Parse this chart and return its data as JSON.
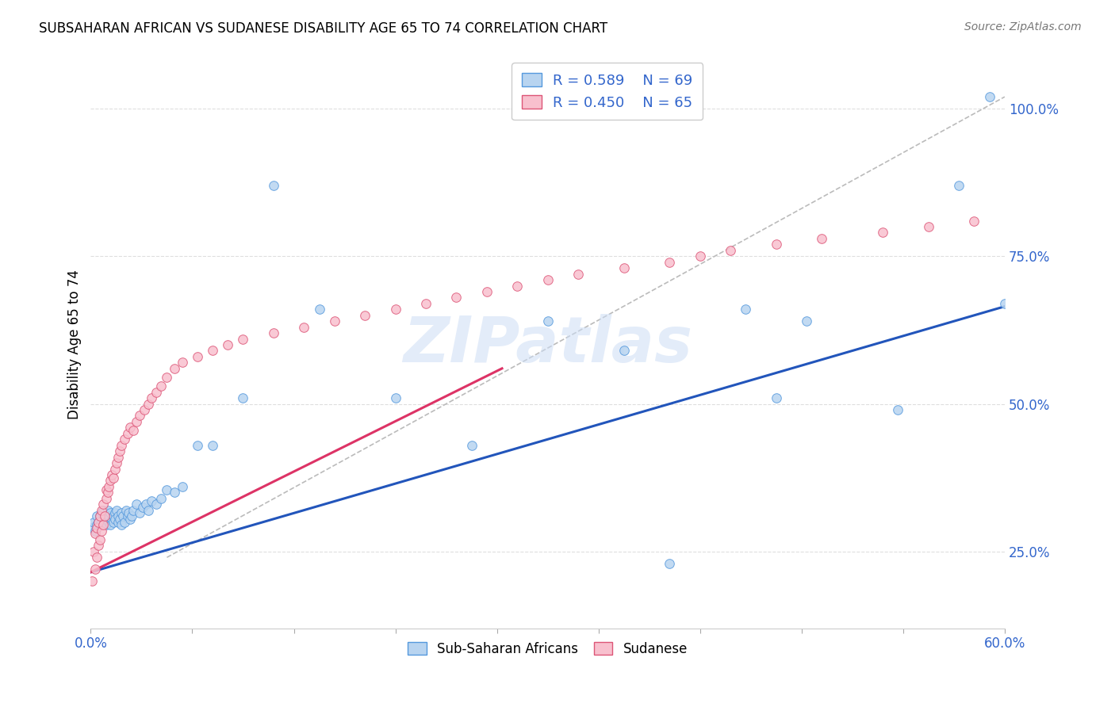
{
  "title": "SUBSAHARAN AFRICAN VS SUDANESE DISABILITY AGE 65 TO 74 CORRELATION CHART",
  "source": "Source: ZipAtlas.com",
  "ylabel": "Disability Age 65 to 74",
  "yticks_labels": [
    "25.0%",
    "50.0%",
    "75.0%",
    "100.0%"
  ],
  "ytick_vals": [
    0.25,
    0.5,
    0.75,
    1.0
  ],
  "legend_blue_r": "R = 0.589",
  "legend_blue_n": "N = 69",
  "legend_pink_r": "R = 0.450",
  "legend_pink_n": "N = 65",
  "legend_label_blue": "Sub-Saharan Africans",
  "legend_label_pink": "Sudanese",
  "color_blue_fill": "#b8d4f0",
  "color_blue_edge": "#5599dd",
  "color_pink_fill": "#f8c0ce",
  "color_pink_edge": "#dd5577",
  "color_blue_line": "#2255bb",
  "color_pink_line": "#dd3366",
  "color_diag": "#bbbbbb",
  "xlim": [
    0.0,
    0.6
  ],
  "ylim": [
    0.12,
    1.08
  ],
  "blue_scatter_x": [
    0.001,
    0.002,
    0.003,
    0.004,
    0.004,
    0.005,
    0.006,
    0.006,
    0.007,
    0.007,
    0.008,
    0.008,
    0.009,
    0.009,
    0.01,
    0.01,
    0.011,
    0.011,
    0.012,
    0.012,
    0.013,
    0.013,
    0.014,
    0.015,
    0.015,
    0.016,
    0.016,
    0.017,
    0.018,
    0.018,
    0.019,
    0.02,
    0.02,
    0.021,
    0.022,
    0.023,
    0.024,
    0.025,
    0.026,
    0.027,
    0.028,
    0.03,
    0.032,
    0.034,
    0.036,
    0.038,
    0.04,
    0.043,
    0.046,
    0.05,
    0.055,
    0.06,
    0.07,
    0.08,
    0.1,
    0.12,
    0.15,
    0.2,
    0.25,
    0.3,
    0.35,
    0.38,
    0.43,
    0.45,
    0.47,
    0.53,
    0.57,
    0.59,
    0.6
  ],
  "blue_scatter_y": [
    0.29,
    0.3,
    0.285,
    0.295,
    0.31,
    0.3,
    0.295,
    0.31,
    0.3,
    0.315,
    0.295,
    0.32,
    0.3,
    0.305,
    0.31,
    0.295,
    0.305,
    0.32,
    0.3,
    0.31,
    0.295,
    0.315,
    0.305,
    0.31,
    0.3,
    0.315,
    0.305,
    0.32,
    0.3,
    0.31,
    0.305,
    0.295,
    0.315,
    0.31,
    0.3,
    0.32,
    0.31,
    0.315,
    0.305,
    0.31,
    0.32,
    0.33,
    0.315,
    0.325,
    0.33,
    0.32,
    0.335,
    0.33,
    0.34,
    0.355,
    0.35,
    0.36,
    0.43,
    0.43,
    0.51,
    0.87,
    0.66,
    0.51,
    0.43,
    0.64,
    0.59,
    0.23,
    0.66,
    0.51,
    0.64,
    0.49,
    0.87,
    1.02,
    0.67
  ],
  "pink_scatter_x": [
    0.001,
    0.002,
    0.003,
    0.003,
    0.004,
    0.004,
    0.005,
    0.005,
    0.006,
    0.006,
    0.007,
    0.007,
    0.008,
    0.008,
    0.009,
    0.01,
    0.01,
    0.011,
    0.012,
    0.013,
    0.014,
    0.015,
    0.016,
    0.017,
    0.018,
    0.019,
    0.02,
    0.022,
    0.024,
    0.026,
    0.028,
    0.03,
    0.032,
    0.035,
    0.038,
    0.04,
    0.043,
    0.046,
    0.05,
    0.055,
    0.06,
    0.07,
    0.08,
    0.09,
    0.1,
    0.12,
    0.14,
    0.16,
    0.18,
    0.2,
    0.22,
    0.24,
    0.26,
    0.28,
    0.3,
    0.32,
    0.35,
    0.38,
    0.4,
    0.42,
    0.45,
    0.48,
    0.52,
    0.55,
    0.58
  ],
  "pink_scatter_y": [
    0.2,
    0.25,
    0.22,
    0.28,
    0.24,
    0.29,
    0.26,
    0.3,
    0.27,
    0.31,
    0.285,
    0.32,
    0.295,
    0.33,
    0.31,
    0.34,
    0.355,
    0.35,
    0.36,
    0.37,
    0.38,
    0.375,
    0.39,
    0.4,
    0.41,
    0.42,
    0.43,
    0.44,
    0.45,
    0.46,
    0.455,
    0.47,
    0.48,
    0.49,
    0.5,
    0.51,
    0.52,
    0.53,
    0.545,
    0.56,
    0.57,
    0.58,
    0.59,
    0.6,
    0.61,
    0.62,
    0.63,
    0.64,
    0.65,
    0.66,
    0.67,
    0.68,
    0.69,
    0.7,
    0.71,
    0.72,
    0.73,
    0.74,
    0.75,
    0.76,
    0.77,
    0.78,
    0.79,
    0.8,
    0.81
  ],
  "blue_line_x": [
    0.0,
    0.6
  ],
  "blue_line_y": [
    0.215,
    0.665
  ],
  "pink_line_x": [
    0.0,
    0.27
  ],
  "pink_line_y": [
    0.215,
    0.56
  ],
  "diag_line_x": [
    0.05,
    0.6
  ],
  "diag_line_y": [
    0.24,
    1.02
  ],
  "watermark_text": "ZIPatlas",
  "background_color": "#ffffff",
  "grid_color": "#dedede",
  "text_color_blue": "#3366cc",
  "legend_r_color": "#000000",
  "legend_n_color": "#3366cc"
}
